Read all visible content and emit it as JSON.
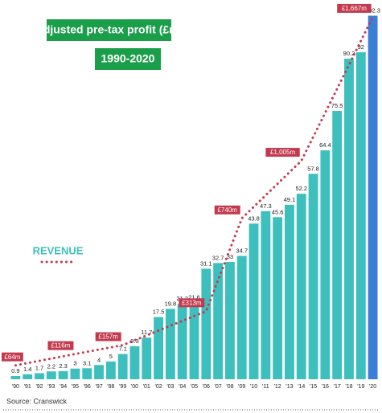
{
  "chart_data": {
    "type": "bar",
    "title": "Adjusted pre-tax profit (£m)",
    "subtitle": "1990-2020",
    "source": "Source: Cranswick",
    "categories": [
      "'90",
      "'91",
      "'92",
      "'93",
      "'94",
      "'95",
      "'96",
      "'97",
      "'98",
      "'99",
      "'00",
      "'01",
      "'02",
      "'03",
      "'04",
      "'05",
      "'06",
      "'07",
      "'08",
      "'09",
      "'10",
      "'11",
      "'12",
      "'13",
      "'14",
      "'15",
      "'16",
      "'17",
      "'18",
      "'19",
      "'20"
    ],
    "values": [
      0.9,
      1.4,
      1.7,
      2.2,
      2.3,
      3.0,
      3.1,
      4.0,
      5.0,
      7.1,
      9.3,
      11.7,
      17.5,
      19.8,
      21.2,
      21.6,
      31.1,
      32.7,
      33.0,
      34.7,
      43.8,
      47.3,
      45.6,
      49.1,
      52.2,
      57.8,
      64.4,
      75.5,
      90.2,
      92.0,
      102.3
    ],
    "colors": [
      "#3dbfbd",
      "#3dbfbd",
      "#3dbfbd",
      "#3dbfbd",
      "#3dbfbd",
      "#3dbfbd",
      "#3dbfbd",
      "#3dbfbd",
      "#3dbfbd",
      "#3dbfbd",
      "#3dbfbd",
      "#3dbfbd",
      "#3dbfbd",
      "#3dbfbd",
      "#3dbfbd",
      "#3dbfbd",
      "#3dbfbd",
      "#3dbfbd",
      "#3dbfbd",
      "#3dbfbd",
      "#3dbfbd",
      "#3dbfbd",
      "#3dbfbd",
      "#3dbfbd",
      "#3dbfbd",
      "#3dbfbd",
      "#3dbfbd",
      "#3dbfbd",
      "#3dbfbd",
      "#3dbfbd",
      "#3b7fd9"
    ],
    "ylim": [
      0,
      104
    ],
    "y2lim": [
      0,
      1700
    ],
    "series": [
      {
        "name": "REVENUE",
        "type": "line",
        "axis": "y2",
        "color": "#c33a4e",
        "x": [
          "'90",
          "'95",
          "'99",
          "'06",
          "'09",
          "'14",
          "'20"
        ],
        "values": [
          64,
          116,
          157,
          313,
          740,
          1005,
          1667
        ],
        "value_labels": [
          "£64m",
          "£116m",
          "£157m",
          "£313m",
          "£740m",
          "£1,005m",
          "£1,667m"
        ]
      }
    ]
  }
}
